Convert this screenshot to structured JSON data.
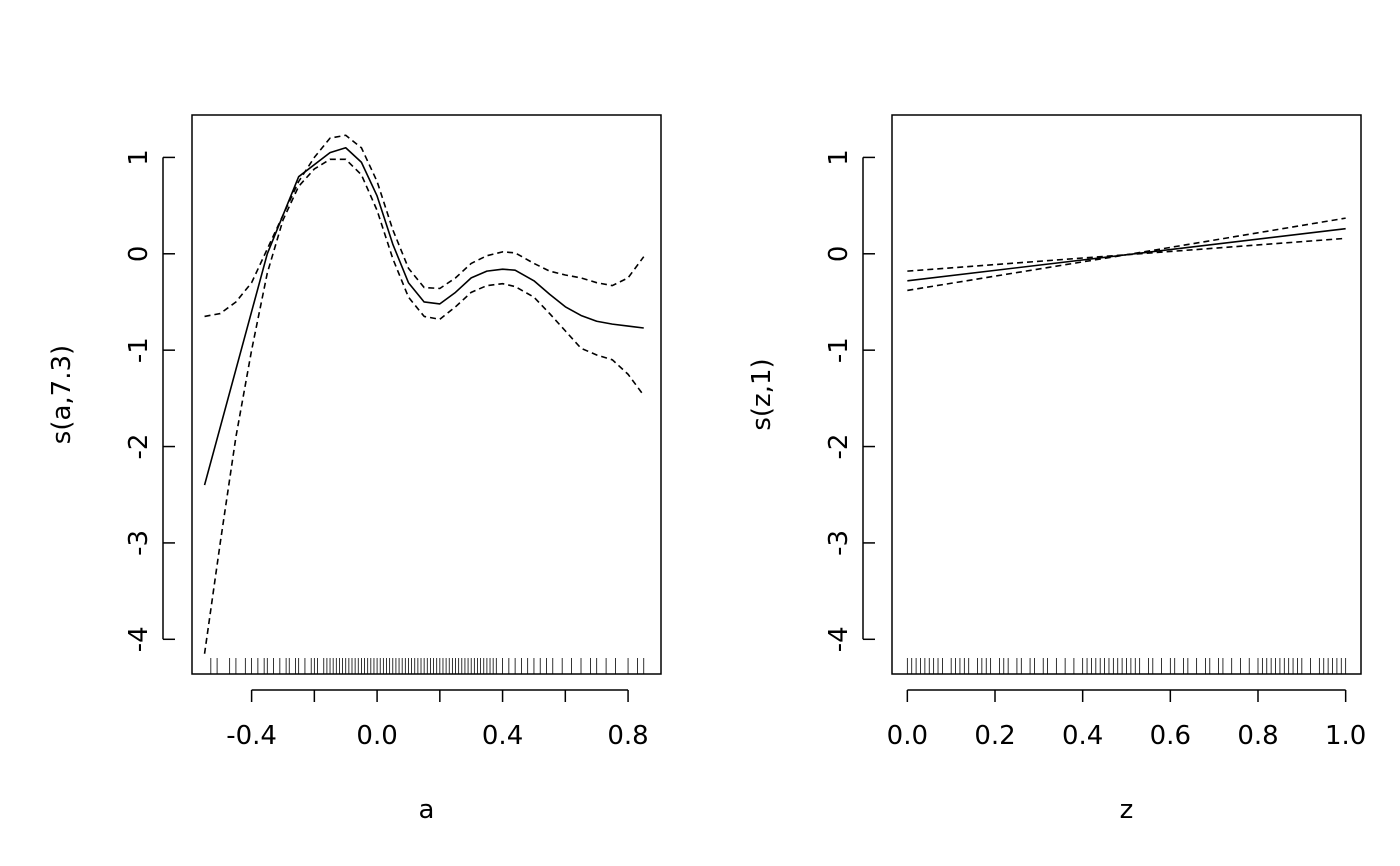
{
  "chart_data": [
    {
      "type": "line",
      "xlabel": "a",
      "ylabel": "s(a,7.3)",
      "xlim": [
        -0.59,
        0.905
      ],
      "ylim": [
        -4.36,
        1.44
      ],
      "xticks": [
        -0.4,
        -0.2,
        0.0,
        0.2,
        0.4,
        0.6,
        0.8
      ],
      "xtick_labels": [
        "-0.4",
        "0.0",
        "0.4",
        "0.8"
      ],
      "yticks": [
        1,
        0,
        -1,
        -2,
        -3,
        -4
      ],
      "ytick_labels": [
        "1",
        "0",
        "-1",
        "-2",
        "-3",
        "-4"
      ],
      "series": [
        {
          "style": "solid",
          "x": [
            -0.55,
            -0.45,
            -0.35,
            -0.25,
            -0.15,
            -0.1,
            -0.05,
            0.0,
            0.05,
            0.1,
            0.15,
            0.2,
            0.25,
            0.3,
            0.35,
            0.4,
            0.44,
            0.5,
            0.55,
            0.6,
            0.65,
            0.7,
            0.75,
            0.8,
            0.85
          ],
          "y": [
            -2.4,
            -1.2,
            0.0,
            0.8,
            1.05,
            1.1,
            0.95,
            0.6,
            0.1,
            -0.3,
            -0.5,
            -0.52,
            -0.4,
            -0.25,
            -0.18,
            -0.16,
            -0.17,
            -0.28,
            -0.42,
            -0.55,
            -0.64,
            -0.7,
            -0.73,
            -0.75,
            -0.77
          ]
        },
        {
          "style": "dashed",
          "x": [
            -0.55,
            -0.5,
            -0.45,
            -0.4,
            -0.35,
            -0.3,
            -0.25,
            -0.2,
            -0.15,
            -0.1,
            -0.05,
            0.0,
            0.05,
            0.1,
            0.15,
            0.2,
            0.25,
            0.3,
            0.35,
            0.4,
            0.44,
            0.5,
            0.55,
            0.6,
            0.65,
            0.7,
            0.75,
            0.8,
            0.85
          ],
          "y": [
            -0.65,
            -0.62,
            -0.5,
            -0.3,
            0.05,
            0.4,
            0.75,
            1.0,
            1.2,
            1.23,
            1.1,
            0.75,
            0.25,
            -0.15,
            -0.35,
            -0.36,
            -0.25,
            -0.1,
            -0.02,
            0.02,
            0.01,
            -0.1,
            -0.18,
            -0.22,
            -0.25,
            -0.3,
            -0.33,
            -0.25,
            -0.03
          ]
        },
        {
          "style": "dashed",
          "x": [
            -0.55,
            -0.5,
            -0.45,
            -0.4,
            -0.35,
            -0.3,
            -0.25,
            -0.2,
            -0.15,
            -0.1,
            -0.05,
            0.0,
            0.05,
            0.1,
            0.15,
            0.2,
            0.25,
            0.3,
            0.35,
            0.4,
            0.44,
            0.5,
            0.55,
            0.6,
            0.65,
            0.7,
            0.75,
            0.8,
            0.85
          ],
          "y": [
            -4.15,
            -3.0,
            -1.9,
            -1.0,
            -0.2,
            0.35,
            0.7,
            0.88,
            0.98,
            0.98,
            0.82,
            0.45,
            -0.05,
            -0.45,
            -0.65,
            -0.68,
            -0.55,
            -0.4,
            -0.33,
            -0.31,
            -0.34,
            -0.45,
            -0.62,
            -0.8,
            -0.98,
            -1.05,
            -1.1,
            -1.25,
            -1.47
          ]
        }
      ],
      "rug": [
        -0.53,
        -0.51,
        -0.47,
        -0.45,
        -0.42,
        -0.4,
        -0.38,
        -0.36,
        -0.35,
        -0.33,
        -0.31,
        -0.29,
        -0.28,
        -0.26,
        -0.25,
        -0.23,
        -0.21,
        -0.2,
        -0.19,
        -0.17,
        -0.16,
        -0.15,
        -0.14,
        -0.13,
        -0.12,
        -0.11,
        -0.1,
        -0.09,
        -0.08,
        -0.07,
        -0.06,
        -0.05,
        -0.04,
        -0.03,
        -0.02,
        -0.01,
        0.0,
        0.01,
        0.02,
        0.03,
        0.04,
        0.05,
        0.06,
        0.07,
        0.08,
        0.09,
        0.1,
        0.11,
        0.12,
        0.13,
        0.14,
        0.15,
        0.16,
        0.17,
        0.18,
        0.19,
        0.2,
        0.21,
        0.22,
        0.23,
        0.24,
        0.25,
        0.26,
        0.27,
        0.28,
        0.29,
        0.3,
        0.31,
        0.32,
        0.33,
        0.34,
        0.35,
        0.36,
        0.37,
        0.38,
        0.4,
        0.42,
        0.44,
        0.46,
        0.48,
        0.5,
        0.52,
        0.54,
        0.56,
        0.59,
        0.62,
        0.65,
        0.68,
        0.7,
        0.73,
        0.76,
        0.8,
        0.83,
        0.85
      ]
    },
    {
      "type": "line",
      "xlabel": "z",
      "ylabel": "s(z,1)",
      "xlim": [
        -0.035,
        1.035
      ],
      "ylim": [
        -4.36,
        1.44
      ],
      "xticks": [
        0.0,
        0.2,
        0.4,
        0.6,
        0.8,
        1.0
      ],
      "xtick_labels": [
        "0.0",
        "0.2",
        "0.4",
        "0.6",
        "0.8",
        "1.0"
      ],
      "yticks": [
        1,
        0,
        -1,
        -2,
        -3,
        -4
      ],
      "ytick_labels": [
        "1",
        "0",
        "-1",
        "-2",
        "-3",
        "-4"
      ],
      "series": [
        {
          "style": "solid",
          "x": [
            0.0,
            1.0
          ],
          "y": [
            -0.28,
            0.26
          ]
        },
        {
          "style": "dashed",
          "x": [
            0.0,
            0.5,
            1.0
          ],
          "y": [
            -0.18,
            -0.01,
            0.16
          ]
        },
        {
          "style": "dashed",
          "x": [
            0.0,
            0.5,
            1.0
          ],
          "y": [
            -0.38,
            -0.01,
            0.37
          ]
        }
      ],
      "rug": [
        0.0,
        0.01,
        0.02,
        0.03,
        0.04,
        0.05,
        0.06,
        0.07,
        0.08,
        0.1,
        0.11,
        0.12,
        0.13,
        0.14,
        0.16,
        0.17,
        0.18,
        0.19,
        0.21,
        0.22,
        0.23,
        0.25,
        0.26,
        0.28,
        0.29,
        0.31,
        0.32,
        0.34,
        0.36,
        0.38,
        0.4,
        0.41,
        0.42,
        0.43,
        0.44,
        0.45,
        0.46,
        0.47,
        0.48,
        0.49,
        0.5,
        0.51,
        0.52,
        0.53,
        0.55,
        0.56,
        0.58,
        0.6,
        0.61,
        0.63,
        0.64,
        0.66,
        0.68,
        0.69,
        0.71,
        0.72,
        0.74,
        0.76,
        0.78,
        0.8,
        0.81,
        0.82,
        0.83,
        0.84,
        0.85,
        0.86,
        0.87,
        0.88,
        0.89,
        0.9,
        0.92,
        0.94,
        0.95,
        0.96,
        0.97,
        0.98,
        0.99,
        1.0
      ]
    }
  ]
}
